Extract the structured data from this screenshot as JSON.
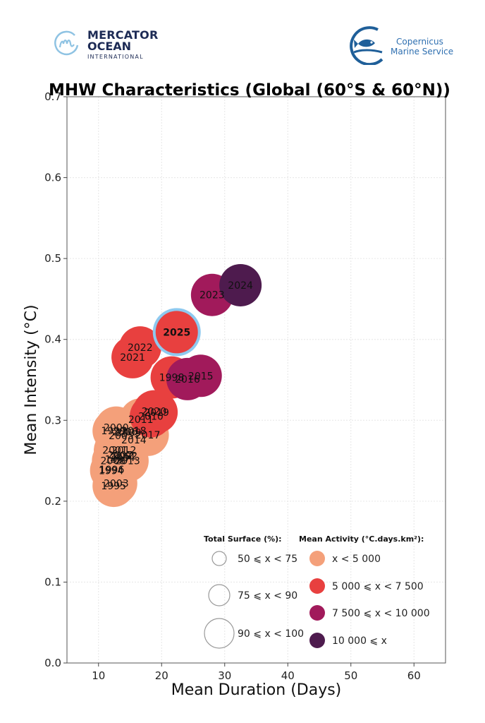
{
  "logos": {
    "left": {
      "line1": "MERCATOR",
      "line2": "OCEAN",
      "line3": "INTERNATIONAL",
      "icon": "mercator-m-icon"
    },
    "right": {
      "line1": "Copernicus",
      "line2": "Marine Service",
      "icon": "fish-icon"
    }
  },
  "colors": {
    "lt5000": "#f4a07a",
    "5000to7500": "#e8403f",
    "7500to10000": "#a11a5b",
    "ge10000": "#4e1b4e",
    "highlight_ring": "#8ec9ef",
    "surface_outline": "#999999"
  },
  "chart_data": {
    "type": "scatter",
    "title": "MHW Characteristics (Global (60°S & 60°N))",
    "xlabel": "Mean Duration (Days)",
    "ylabel": "Mean Intensity (°C)",
    "xlim": [
      5,
      65
    ],
    "ylim": [
      0.0,
      0.7
    ],
    "xticks": [
      10,
      20,
      30,
      40,
      50,
      60
    ],
    "yticks": [
      0.0,
      0.1,
      0.2,
      0.3,
      0.4,
      0.5,
      0.6,
      0.7
    ],
    "ytick_labels": [
      "0.0",
      "0.1",
      "0.2",
      "0.3",
      "0.4",
      "0.5",
      "0.6",
      "0.7"
    ],
    "grid": true,
    "highlight_year": "2025",
    "points": [
      {
        "label": "1995",
        "x": 12.4,
        "y": 0.219,
        "surface": "75-90",
        "activity": "lt5000"
      },
      {
        "label": "2003",
        "x": 12.8,
        "y": 0.222,
        "surface": "75-90",
        "activity": "lt5000"
      },
      {
        "label": "1994",
        "x": 12.0,
        "y": 0.238,
        "surface": "75-90",
        "activity": "lt5000"
      },
      {
        "label": "1996",
        "x": 12.1,
        "y": 0.239,
        "surface": "75-90",
        "activity": "lt5000"
      },
      {
        "label": "2008",
        "x": 12.3,
        "y": 0.25,
        "surface": "75-90",
        "activity": "lt5000"
      },
      {
        "label": "1997",
        "x": 13.0,
        "y": 0.252,
        "surface": "75-90",
        "activity": "lt5000"
      },
      {
        "label": "2004",
        "x": 13.8,
        "y": 0.254,
        "surface": "75-90",
        "activity": "lt5000"
      },
      {
        "label": "2002",
        "x": 14.2,
        "y": 0.256,
        "surface": "75-90",
        "activity": "lt5000"
      },
      {
        "label": "2013",
        "x": 14.6,
        "y": 0.25,
        "surface": "75-90",
        "activity": "lt5000"
      },
      {
        "label": "2007",
        "x": 13.4,
        "y": 0.257,
        "surface": "75-90",
        "activity": "lt5000"
      },
      {
        "label": "2001",
        "x": 12.6,
        "y": 0.263,
        "surface": "75-90",
        "activity": "lt5000"
      },
      {
        "label": "2012",
        "x": 14.0,
        "y": 0.263,
        "surface": "75-90",
        "activity": "lt5000"
      },
      {
        "label": "2014",
        "x": 15.6,
        "y": 0.276,
        "surface": "75-90",
        "activity": "lt5000"
      },
      {
        "label": "2005",
        "x": 13.6,
        "y": 0.281,
        "surface": "75-90",
        "activity": "lt5000"
      },
      {
        "label": "2017",
        "x": 17.8,
        "y": 0.282,
        "surface": "75-90",
        "activity": "lt5000"
      },
      {
        "label": "2018",
        "x": 15.6,
        "y": 0.287,
        "surface": "75-90",
        "activity": "lt5000"
      },
      {
        "label": "1999",
        "x": 12.4,
        "y": 0.287,
        "surface": "75-90",
        "activity": "lt5000"
      },
      {
        "label": "2006",
        "x": 14.2,
        "y": 0.286,
        "surface": "75-90",
        "activity": "lt5000"
      },
      {
        "label": "2000",
        "x": 12.8,
        "y": 0.291,
        "surface": "75-90",
        "activity": "lt5000"
      },
      {
        "label": "2009",
        "x": 14.8,
        "y": 0.285,
        "surface": "75-90",
        "activity": "lt5000"
      },
      {
        "label": "2011",
        "x": 16.7,
        "y": 0.301,
        "surface": "75-90",
        "activity": "lt5000"
      },
      {
        "label": "2010",
        "x": 18.3,
        "y": 0.305,
        "surface": "75-90",
        "activity": "5000to7500"
      },
      {
        "label": "2019",
        "x": 19.2,
        "y": 0.31,
        "surface": "75-90",
        "activity": "5000to7500"
      },
      {
        "label": "2020",
        "x": 18.8,
        "y": 0.311,
        "surface": "75-90",
        "activity": "5000to7500"
      },
      {
        "label": "1998",
        "x": 21.6,
        "y": 0.353,
        "surface": "75-90",
        "activity": "5000to7500"
      },
      {
        "label": "2016",
        "x": 24.1,
        "y": 0.351,
        "surface": "75-90",
        "activity": "7500to10000"
      },
      {
        "label": "2015",
        "x": 26.2,
        "y": 0.355,
        "surface": "75-90",
        "activity": "7500to10000"
      },
      {
        "label": "2021",
        "x": 15.4,
        "y": 0.378,
        "surface": "75-90",
        "activity": "5000to7500"
      },
      {
        "label": "2022",
        "x": 16.6,
        "y": 0.39,
        "surface": "75-90",
        "activity": "5000to7500"
      },
      {
        "label": "2025",
        "x": 22.4,
        "y": 0.409,
        "surface": "75-90",
        "activity": "5000to7500"
      },
      {
        "label": "2023",
        "x": 28.0,
        "y": 0.455,
        "surface": "75-90",
        "activity": "7500to10000"
      },
      {
        "label": "2024",
        "x": 32.5,
        "y": 0.467,
        "surface": "75-90",
        "activity": "ge10000"
      }
    ],
    "legend": {
      "placement": "bottom-right",
      "surface_title": "Total Surface (%):",
      "surface_entries": [
        {
          "label": "50 ⩽ x < 75",
          "key": "50-75"
        },
        {
          "label": "75 ⩽ x < 90",
          "key": "75-90"
        },
        {
          "label": "90 ⩽ x < 100",
          "key": "90-100"
        }
      ],
      "activity_title": "Mean Activity (°C.days.km²):",
      "activity_entries": [
        {
          "label": "x < 5 000",
          "key": "lt5000"
        },
        {
          "label": "5 000 ⩽ x < 7 500",
          "key": "5000to7500"
        },
        {
          "label": "7 500 ⩽ x < 10 000",
          "key": "7500to10000"
        },
        {
          "label": "10 000 ⩽ x",
          "key": "ge10000"
        }
      ]
    }
  }
}
